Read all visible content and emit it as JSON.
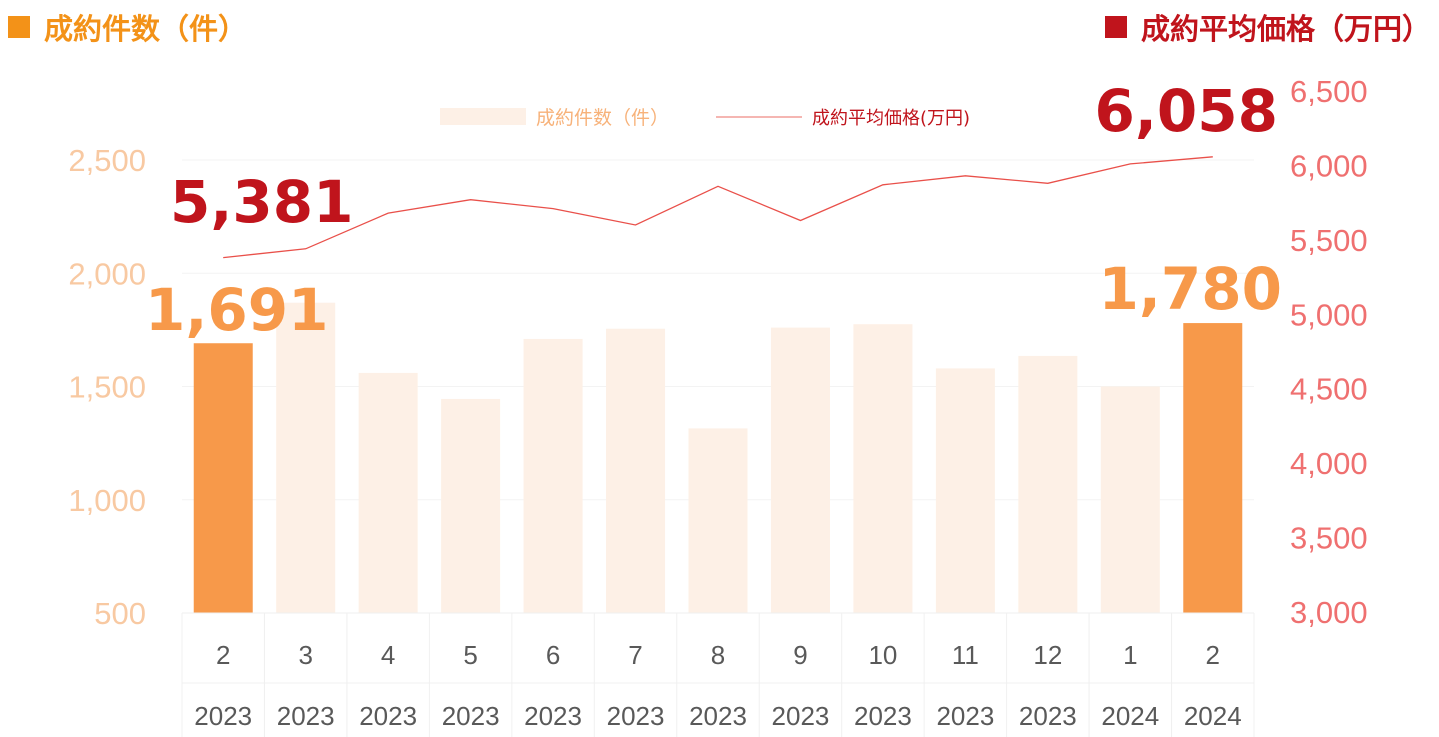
{
  "header": {
    "left_title": "成約件数（件）",
    "right_title": "成約平均価格（万円）"
  },
  "legend": {
    "bar_label": "成約件数（件）",
    "line_label": "成約平均価格(万円)"
  },
  "colors": {
    "bar_highlight": "#f7994a",
    "bar_faded": "#fdf0e6",
    "line": "#e9504a",
    "header_left": "#f39218",
    "header_right": "#c0141c",
    "callout_price": "#c0141c",
    "callout_count": "#f7994a"
  },
  "chart_data": {
    "type": "bar",
    "categories": [
      {
        "month": "2",
        "year": "2023"
      },
      {
        "month": "3",
        "year": "2023"
      },
      {
        "month": "4",
        "year": "2023"
      },
      {
        "month": "5",
        "year": "2023"
      },
      {
        "month": "6",
        "year": "2023"
      },
      {
        "month": "7",
        "year": "2023"
      },
      {
        "month": "8",
        "year": "2023"
      },
      {
        "month": "9",
        "year": "2023"
      },
      {
        "month": "10",
        "year": "2023"
      },
      {
        "month": "11",
        "year": "2023"
      },
      {
        "month": "12",
        "year": "2023"
      },
      {
        "month": "1",
        "year": "2024"
      },
      {
        "month": "2",
        "year": "2024"
      }
    ],
    "series": [
      {
        "name": "成約件数（件）",
        "type": "bar",
        "axis": "left",
        "values": [
          1691,
          1870,
          1560,
          1445,
          1710,
          1755,
          1315,
          1760,
          1775,
          1580,
          1635,
          1500,
          1780
        ],
        "highlight": [
          0,
          12
        ]
      },
      {
        "name": "成約平均価格(万円)",
        "type": "line",
        "axis": "right",
        "values": [
          5381,
          5440,
          5680,
          5770,
          5710,
          5600,
          5860,
          5630,
          5870,
          5930,
          5880,
          6010,
          6058
        ]
      }
    ],
    "y_left": {
      "ticks": [
        "500",
        "1,000",
        "1,500",
        "2,000",
        "2,500"
      ],
      "tick_values": [
        500,
        1000,
        1500,
        2000,
        2500
      ],
      "range": [
        500,
        2500
      ]
    },
    "y_right": {
      "ticks": [
        "3,000",
        "3,500",
        "4,000",
        "4,500",
        "5,000",
        "5,500",
        "6,000",
        "6,500"
      ],
      "tick_values": [
        3000,
        3500,
        4000,
        4500,
        5000,
        5500,
        6000,
        6500
      ],
      "range": [
        3000,
        6500
      ]
    },
    "grid": true,
    "legend_position": "top-center",
    "callouts": [
      {
        "text": "5,381",
        "series": "line",
        "index": 0
      },
      {
        "text": "6,058",
        "series": "line",
        "index": 12
      },
      {
        "text": "1,691",
        "series": "bar",
        "index": 0
      },
      {
        "text": "1,780",
        "series": "bar",
        "index": 12
      }
    ]
  }
}
